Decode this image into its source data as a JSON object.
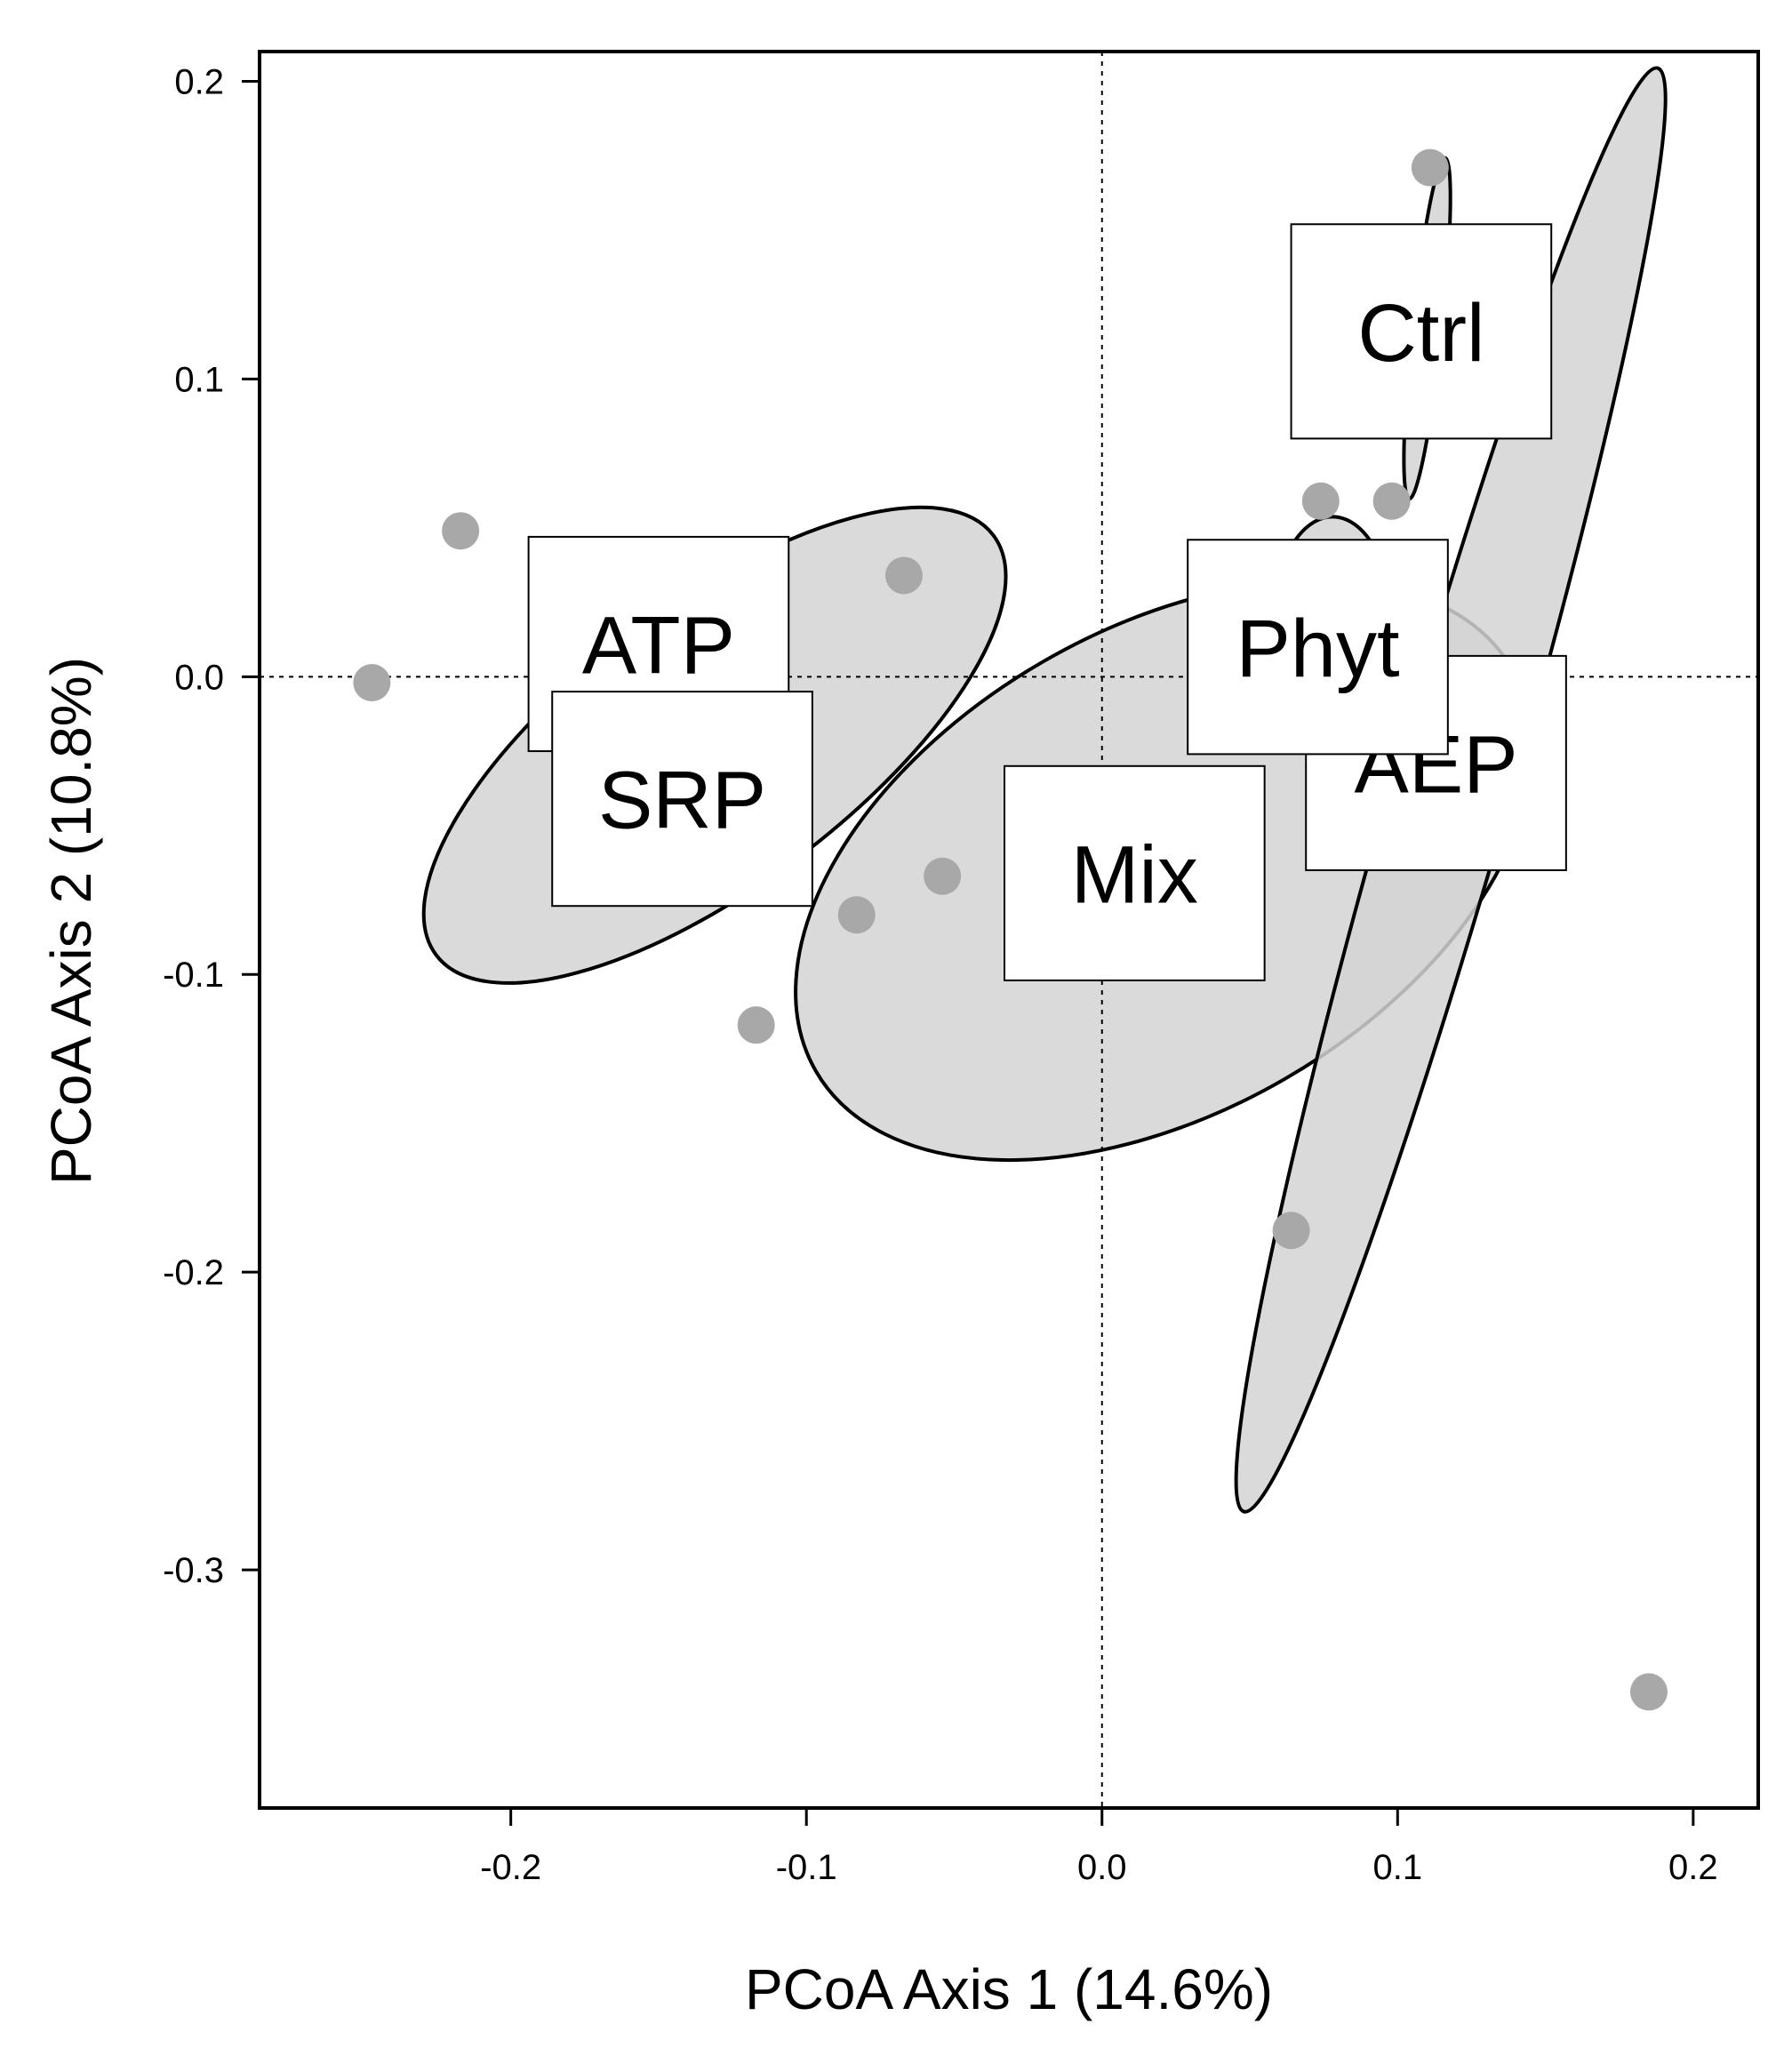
{
  "chart_data": {
    "type": "scatter",
    "xlabel": "PCoA Axis 1 (14.6%)",
    "ylabel": "PCoA Axis 2 (10.8%)",
    "xlim": [
      -0.285,
      0.222
    ],
    "ylim": [
      -0.38,
      0.21
    ],
    "xticks": [
      -0.2,
      -0.1,
      0.0,
      0.1,
      0.2
    ],
    "xtick_labels": [
      "-0.2",
      "-0.1",
      "0.0",
      "0.1",
      "0.2"
    ],
    "yticks": [
      0.2,
      0.1,
      0.0,
      -0.1,
      -0.2,
      -0.3
    ],
    "ytick_labels": [
      "0.2",
      "0.1",
      "0.0",
      "-0.1",
      "-0.2",
      "-0.3"
    ],
    "reference_lines": {
      "x": 0.0,
      "y": 0.0,
      "style": "dotted"
    },
    "grid": false,
    "legend": "none",
    "colors": {
      "points": "#a8a8a8",
      "ellipse_fill": "#d3d3d3",
      "ellipse_stroke": "#000000",
      "label_box": "#ffffff"
    },
    "points": [
      {
        "x": -0.247,
        "y": -0.002
      },
      {
        "x": -0.217,
        "y": 0.049
      },
      {
        "x": -0.067,
        "y": 0.034
      },
      {
        "x": -0.054,
        "y": -0.067
      },
      {
        "x": -0.083,
        "y": -0.08
      },
      {
        "x": -0.117,
        "y": -0.117
      },
      {
        "x": 0.074,
        "y": 0.059
      },
      {
        "x": 0.098,
        "y": 0.059
      },
      {
        "x": 0.111,
        "y": 0.171
      },
      {
        "x": 0.064,
        "y": -0.186
      },
      {
        "x": 0.185,
        "y": -0.341
      }
    ],
    "ellipses": [
      {
        "cx": -0.131,
        "cy": -0.023,
        "rx": 0.118,
        "ry": 0.047,
        "angle": -37
      },
      {
        "cx": 0.021,
        "cy": -0.065,
        "rx": 0.136,
        "ry": 0.081,
        "angle": -30
      },
      {
        "cx": 0.078,
        "cy": 0.018,
        "rx": 0.036,
        "ry": 0.02,
        "angle": -90
      },
      {
        "cx": 0.11,
        "cy": 0.117,
        "rx": 0.058,
        "ry": 0.005,
        "angle": -84
      },
      {
        "cx": 0.118,
        "cy": -0.038,
        "rx": 0.254,
        "ry": 0.02,
        "angle": -74
      }
    ],
    "group_labels": [
      {
        "text": "ATP",
        "x": -0.15,
        "y": 0.011
      },
      {
        "text": "SRP",
        "x": -0.142,
        "y": -0.041
      },
      {
        "text": "Mix",
        "x": 0.011,
        "y": -0.066
      },
      {
        "text": "AEP",
        "x": 0.113,
        "y": -0.029
      },
      {
        "text": "Phyt",
        "x": 0.073,
        "y": 0.01
      },
      {
        "text": "Ctrl",
        "x": 0.108,
        "y": 0.116
      }
    ]
  }
}
